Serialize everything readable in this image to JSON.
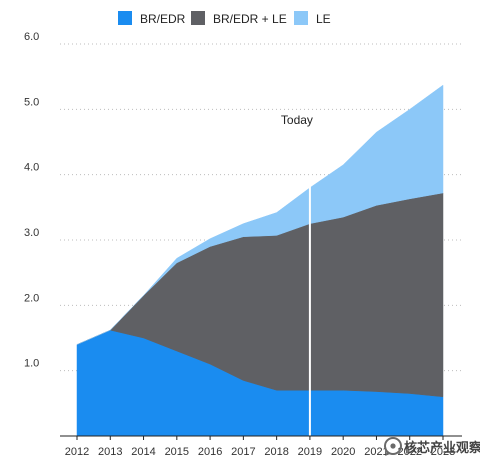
{
  "chart_data": {
    "type": "area",
    "stacked": true,
    "x": [
      2012,
      2013,
      2014,
      2015,
      2016,
      2017,
      2018,
      2019,
      2020,
      2021,
      2022,
      2023
    ],
    "x_tick_labels": [
      "2012",
      "2013",
      "2014",
      "2015",
      "2016",
      "2017",
      "2018",
      "2019",
      "2020",
      "2021",
      "2022",
      "2023"
    ],
    "y_tick_labels": [
      "1.0",
      "2.0",
      "3.0",
      "4.0",
      "5.0",
      "6.0"
    ],
    "ylim": [
      0,
      6.0
    ],
    "grid": "horizontal-dotted",
    "legend_placement": "top-center",
    "series": [
      {
        "name": "BR/EDR",
        "color": "#1a8cf0",
        "values": [
          1.4,
          1.62,
          1.5,
          1.3,
          1.1,
          0.85,
          0.7,
          0.7,
          0.7,
          0.68,
          0.65,
          0.6
        ]
      },
      {
        "name": "BR/EDR + LE",
        "color": "#5f6064",
        "values": [
          0.0,
          0.0,
          0.65,
          1.35,
          1.8,
          2.2,
          2.37,
          2.55,
          2.65,
          2.85,
          2.98,
          3.12
        ]
      },
      {
        "name": "LE",
        "color": "#8cc8f8",
        "values": [
          0.0,
          0.0,
          0.0,
          0.07,
          0.12,
          0.2,
          0.35,
          0.55,
          0.8,
          1.12,
          1.37,
          1.65
        ]
      }
    ],
    "annotations": [
      {
        "text": "Today",
        "x": 2019,
        "y": 4.85
      }
    ],
    "marker_line": {
      "x": 2019
    }
  },
  "watermark": {
    "text": "核芯产业观察",
    "icon": "wechat-channel-icon"
  }
}
